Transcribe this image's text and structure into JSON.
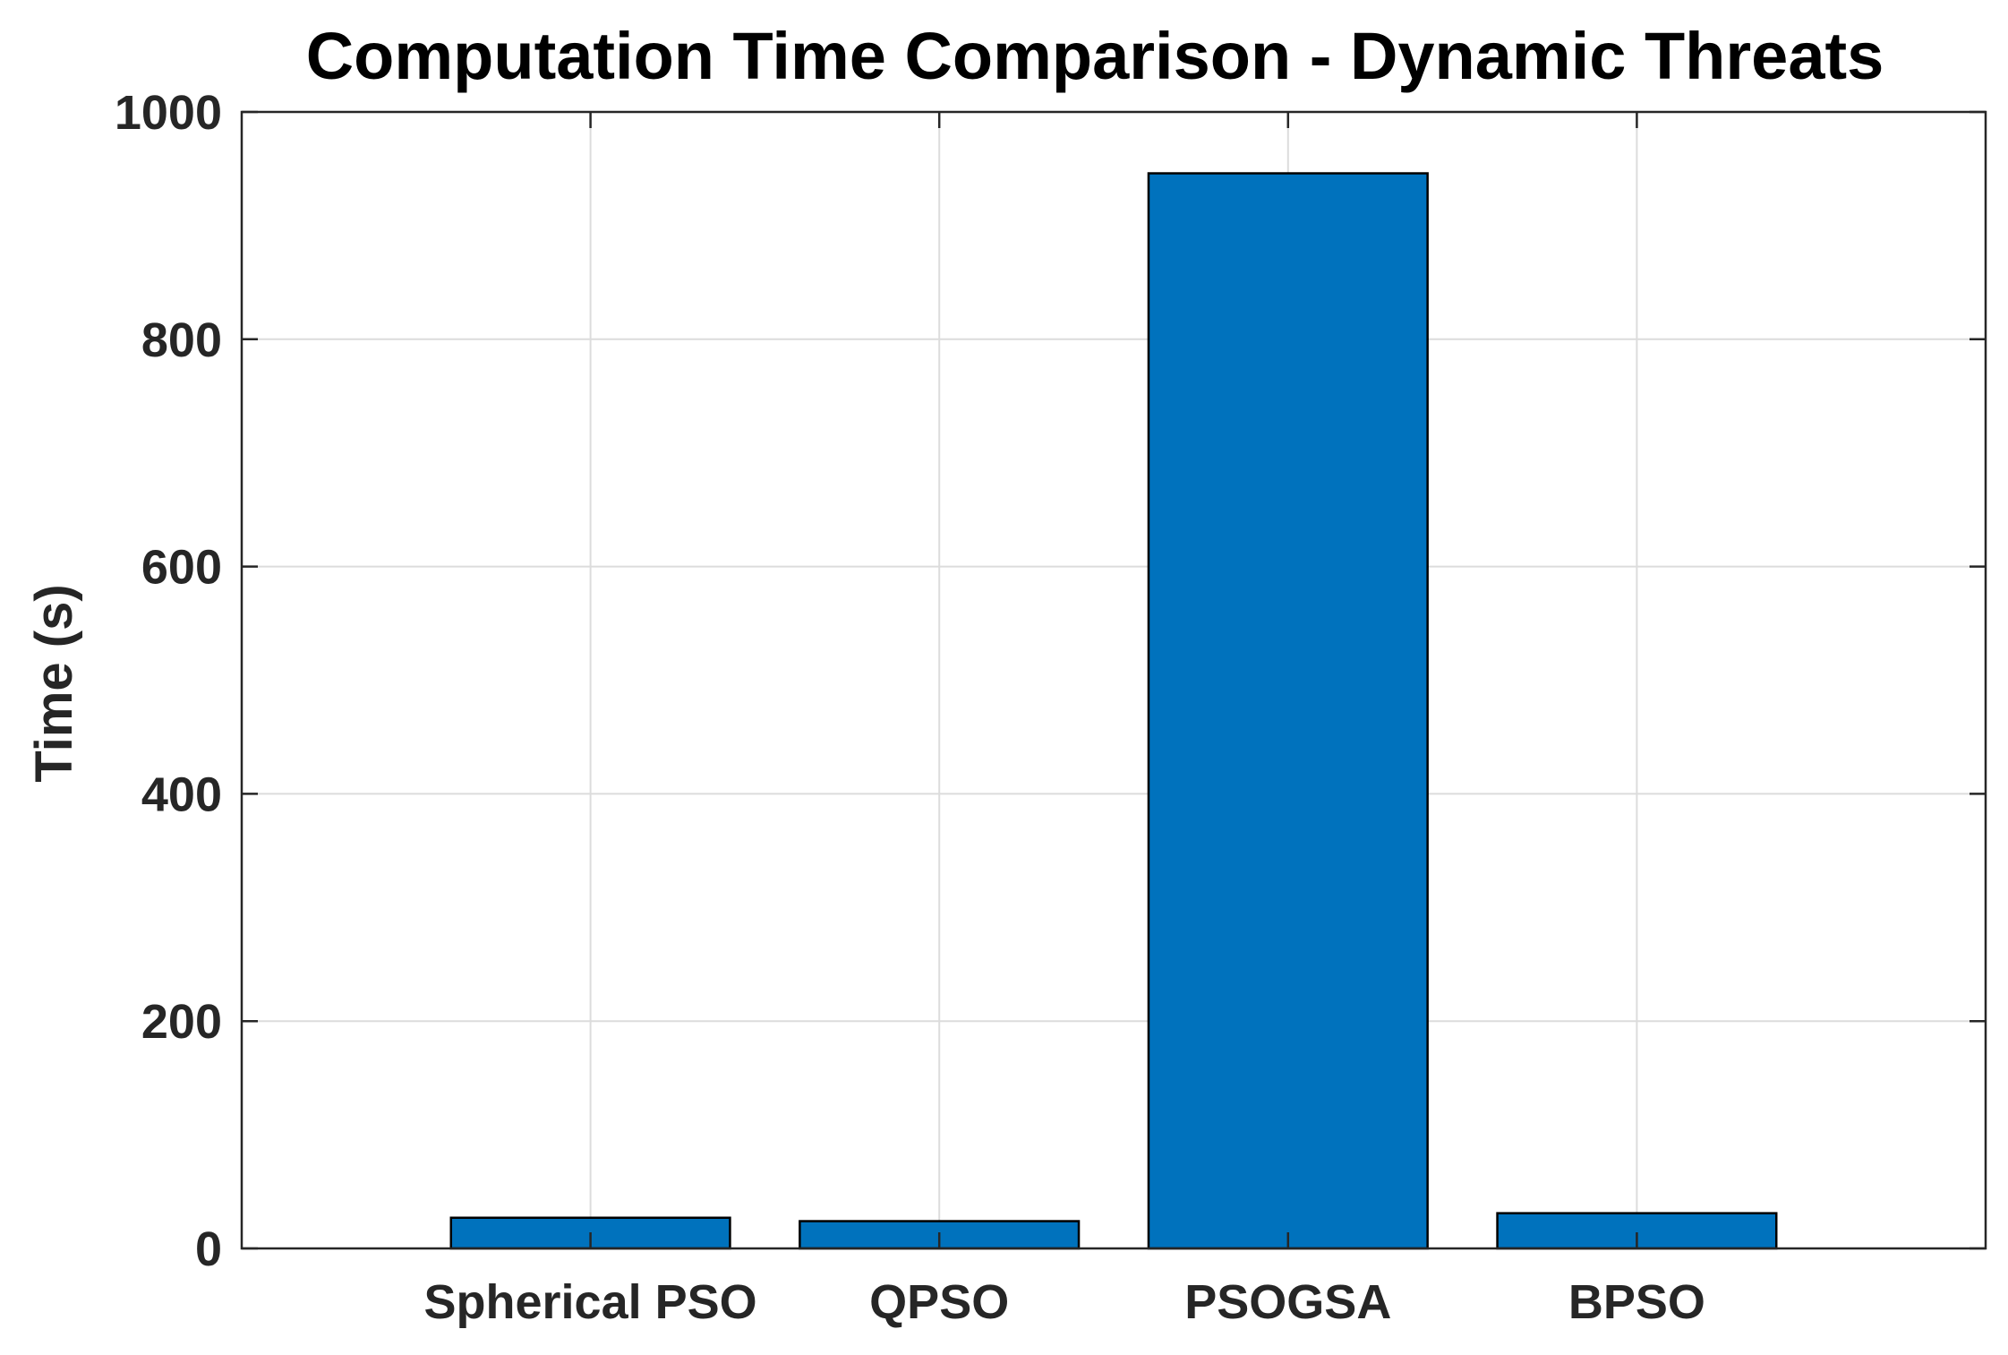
{
  "chart_data": {
    "type": "bar",
    "title": "Computation Time Comparison - Dynamic Threats",
    "xlabel": "",
    "ylabel": "Time (s)",
    "categories": [
      "Spherical PSO",
      "QPSO",
      "PSOGSA",
      "BPSO"
    ],
    "values": [
      27,
      24,
      946,
      31
    ],
    "ylim": [
      0,
      1000
    ],
    "yticks": [
      0,
      200,
      400,
      600,
      800,
      1000
    ],
    "xlim": [
      0,
      5
    ],
    "grid": true,
    "legend": "none"
  },
  "colors": {
    "bar_fill": "#0072BD",
    "bar_edge": "#000000",
    "axis": "#262626",
    "grid": "#dcdcdc",
    "background": "#ffffff"
  }
}
